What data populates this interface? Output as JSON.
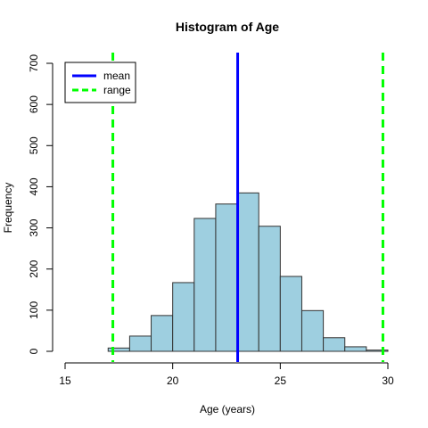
{
  "chart_data": {
    "type": "bar",
    "title": "Histogram of Age",
    "xlabel": "Age (years)",
    "ylabel": "Frequency",
    "xlim": [
      15,
      30
    ],
    "ylim": [
      0,
      700
    ],
    "x_ticks": [
      15,
      20,
      25,
      30
    ],
    "y_ticks": [
      0,
      100,
      200,
      300,
      400,
      500,
      600,
      700
    ],
    "bins": [
      {
        "start": 17,
        "end": 18,
        "count": 8
      },
      {
        "start": 18,
        "end": 19,
        "count": 37
      },
      {
        "start": 19,
        "end": 20,
        "count": 87
      },
      {
        "start": 20,
        "end": 21,
        "count": 167
      },
      {
        "start": 21,
        "end": 22,
        "count": 323
      },
      {
        "start": 22,
        "end": 23,
        "count": 358
      },
      {
        "start": 23,
        "end": 24,
        "count": 385
      },
      {
        "start": 24,
        "end": 25,
        "count": 304
      },
      {
        "start": 25,
        "end": 26,
        "count": 182
      },
      {
        "start": 26,
        "end": 27,
        "count": 99
      },
      {
        "start": 27,
        "end": 28,
        "count": 33
      },
      {
        "start": 28,
        "end": 29,
        "count": 11
      },
      {
        "start": 29,
        "end": 30,
        "count": 3
      }
    ],
    "reference_lines": [
      {
        "name": "mean",
        "x": 23.02,
        "color": "#0000ff",
        "style": "solid"
      },
      {
        "name": "range",
        "x": 17.22,
        "color": "#00ff00",
        "style": "dashed"
      },
      {
        "name": "range",
        "x": 29.77,
        "color": "#00ff00",
        "style": "dashed"
      }
    ],
    "legend": {
      "position": "top-left",
      "entries": [
        {
          "label": "mean",
          "color": "#0000ff",
          "style": "solid"
        },
        {
          "label": "range",
          "color": "#00ff00",
          "style": "dashed"
        }
      ]
    },
    "colors": {
      "bar_fill": "#9ecfe0",
      "bar_stroke": "#333333"
    },
    "grid": false
  }
}
